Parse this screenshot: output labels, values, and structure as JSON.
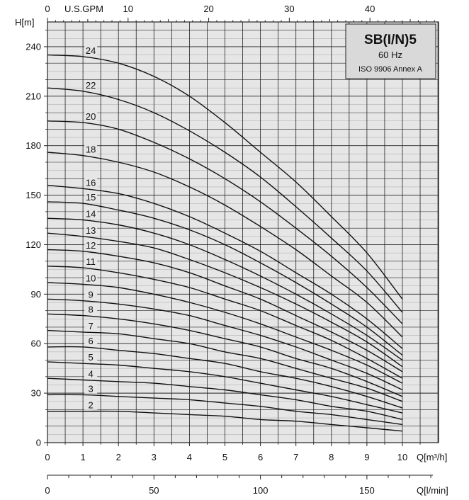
{
  "chart_data": {
    "type": "line",
    "title": "SB(I/N)5",
    "subtitle": "60 Hz",
    "standard": "ISO 9906 Annex A",
    "ylabel": "H[m]",
    "xlabel": "Q[m³/h]",
    "x2label": "Q[l/min]",
    "x3label": "U.S.GPM",
    "ylim": [
      0,
      255
    ],
    "xlim": [
      0,
      11
    ],
    "y_ticks": [
      "0",
      "30",
      "60",
      "90",
      "120",
      "150",
      "180",
      "210",
      "240"
    ],
    "x_ticks": [
      "0",
      "1",
      "2",
      "3",
      "4",
      "5",
      "6",
      "7",
      "8",
      "9",
      "10"
    ],
    "x2_ticks": [
      "0",
      "50",
      "100",
      "150"
    ],
    "x3_ticks": [
      "0",
      "10",
      "20",
      "30",
      "40"
    ],
    "grid": true,
    "colors": {
      "curve": "#111111",
      "grid": "#222222",
      "plot_bg": "#e6e6e6",
      "title_box": "#d9d9d9"
    },
    "x": [
      0,
      1,
      2,
      3,
      4,
      5,
      6,
      7,
      8,
      9,
      10
    ],
    "series": [
      {
        "name": "24",
        "values": [
          235,
          234,
          230,
          222,
          210,
          194,
          176,
          158,
          137,
          115,
          87
        ]
      },
      {
        "name": "22",
        "values": [
          215,
          213,
          208,
          200,
          189,
          176,
          161,
          143,
          124,
          104,
          79
        ]
      },
      {
        "name": "20",
        "values": [
          195,
          194,
          190,
          182,
          172,
          160,
          146,
          130,
          113,
          94,
          72
        ]
      },
      {
        "name": "18",
        "values": [
          176,
          174,
          170,
          164,
          155,
          144,
          131,
          117,
          101,
          85,
          64
        ]
      },
      {
        "name": "16",
        "values": [
          156,
          154,
          151,
          145,
          137,
          127,
          116,
          103,
          90,
          75,
          57
        ]
      },
      {
        "name": "15",
        "values": [
          146,
          145,
          141,
          136,
          129,
          120,
          109,
          97,
          84,
          70,
          53
        ]
      },
      {
        "name": "14",
        "values": [
          136,
          135,
          132,
          127,
          120,
          111,
          101,
          90,
          78,
          65,
          50
        ]
      },
      {
        "name": "13",
        "values": [
          127,
          125,
          122,
          118,
          111,
          103,
          94,
          84,
          73,
          61,
          46
        ]
      },
      {
        "name": "12",
        "values": [
          117,
          116,
          113,
          109,
          103,
          95,
          87,
          77,
          67,
          56,
          43
        ]
      },
      {
        "name": "11",
        "values": [
          107,
          106,
          103,
          99,
          94,
          87,
          80,
          71,
          62,
          51,
          39
        ]
      },
      {
        "name": "10",
        "values": [
          97,
          96,
          94,
          90,
          85,
          79,
          72,
          64,
          56,
          47,
          36
        ]
      },
      {
        "name": "9",
        "values": [
          87,
          86,
          84,
          81,
          77,
          71,
          65,
          58,
          50,
          42,
          32
        ]
      },
      {
        "name": "8",
        "values": [
          78,
          77,
          75,
          72,
          68,
          63,
          58,
          51,
          45,
          37,
          28
        ]
      },
      {
        "name": "7",
        "values": [
          68,
          67,
          66,
          63,
          60,
          55,
          51,
          45,
          39,
          33,
          25
        ]
      },
      {
        "name": "6",
        "values": [
          58,
          58,
          56,
          54,
          51,
          48,
          43,
          39,
          34,
          28,
          21
        ]
      },
      {
        "name": "5",
        "values": [
          49,
          48,
          47,
          45,
          43,
          40,
          36,
          32,
          28,
          23,
          18
        ]
      },
      {
        "name": "4",
        "values": [
          39,
          38,
          37,
          36,
          34,
          32,
          29,
          26,
          22,
          19,
          14
        ]
      },
      {
        "name": "3",
        "values": [
          29,
          29,
          28,
          27,
          26,
          24,
          22,
          19,
          17,
          14,
          11
        ]
      },
      {
        "name": "2",
        "values": [
          19,
          19,
          19,
          18,
          17,
          16,
          14,
          13,
          11,
          9,
          7
        ]
      }
    ]
  }
}
